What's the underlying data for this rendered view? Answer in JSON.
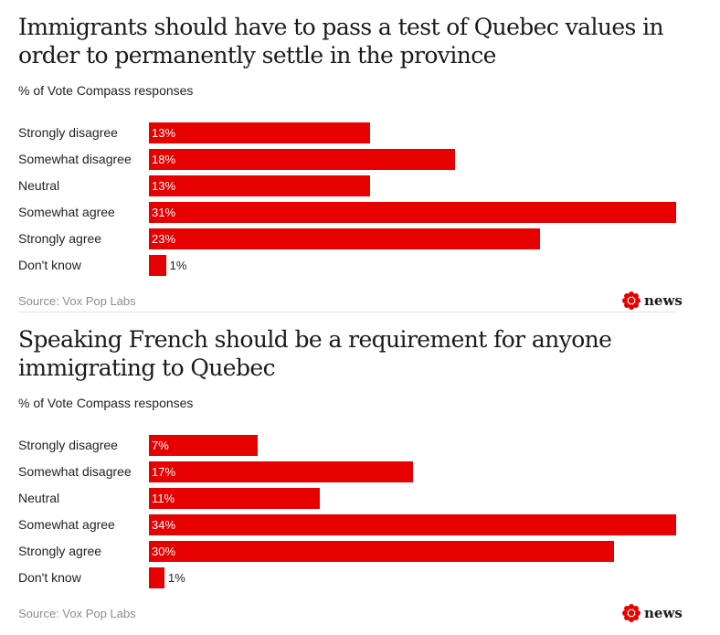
{
  "brand_color": "#e60000",
  "chart_data": [
    {
      "type": "bar",
      "orientation": "horizontal",
      "title": "Immigrants should have to pass a test of Quebec values in order to permanently settle in the province",
      "subtitle": "% of Vote Compass responses",
      "categories": [
        "Strongly disagree",
        "Somewhat disagree",
        "Neutral",
        "Somewhat agree",
        "Strongly agree",
        "Don't know"
      ],
      "values": [
        13,
        18,
        13,
        31,
        23,
        1
      ],
      "value_labels": [
        "13%",
        "18%",
        "13%",
        "31%",
        "23%",
        "1%"
      ],
      "value_suffix": "%",
      "xlim": [
        0,
        31
      ],
      "source": "Source: Vox Pop Labs",
      "logo_text": "news",
      "logo_icon": "cbc-gem-icon"
    },
    {
      "type": "bar",
      "orientation": "horizontal",
      "title": "Speaking French should be a requirement for anyone immigrating to Quebec",
      "subtitle": "% of Vote Compass responses",
      "categories": [
        "Strongly disagree",
        "Somewhat disagree",
        "Neutral",
        "Somewhat agree",
        "Strongly agree",
        "Don't know"
      ],
      "values": [
        7,
        17,
        11,
        34,
        30,
        1
      ],
      "value_labels": [
        "7%",
        "17%",
        "11%",
        "34%",
        "30%",
        "1%"
      ],
      "value_suffix": "%",
      "xlim": [
        0,
        34
      ],
      "source": "Source: Vox Pop Labs",
      "logo_text": "news",
      "logo_icon": "cbc-gem-icon"
    }
  ]
}
